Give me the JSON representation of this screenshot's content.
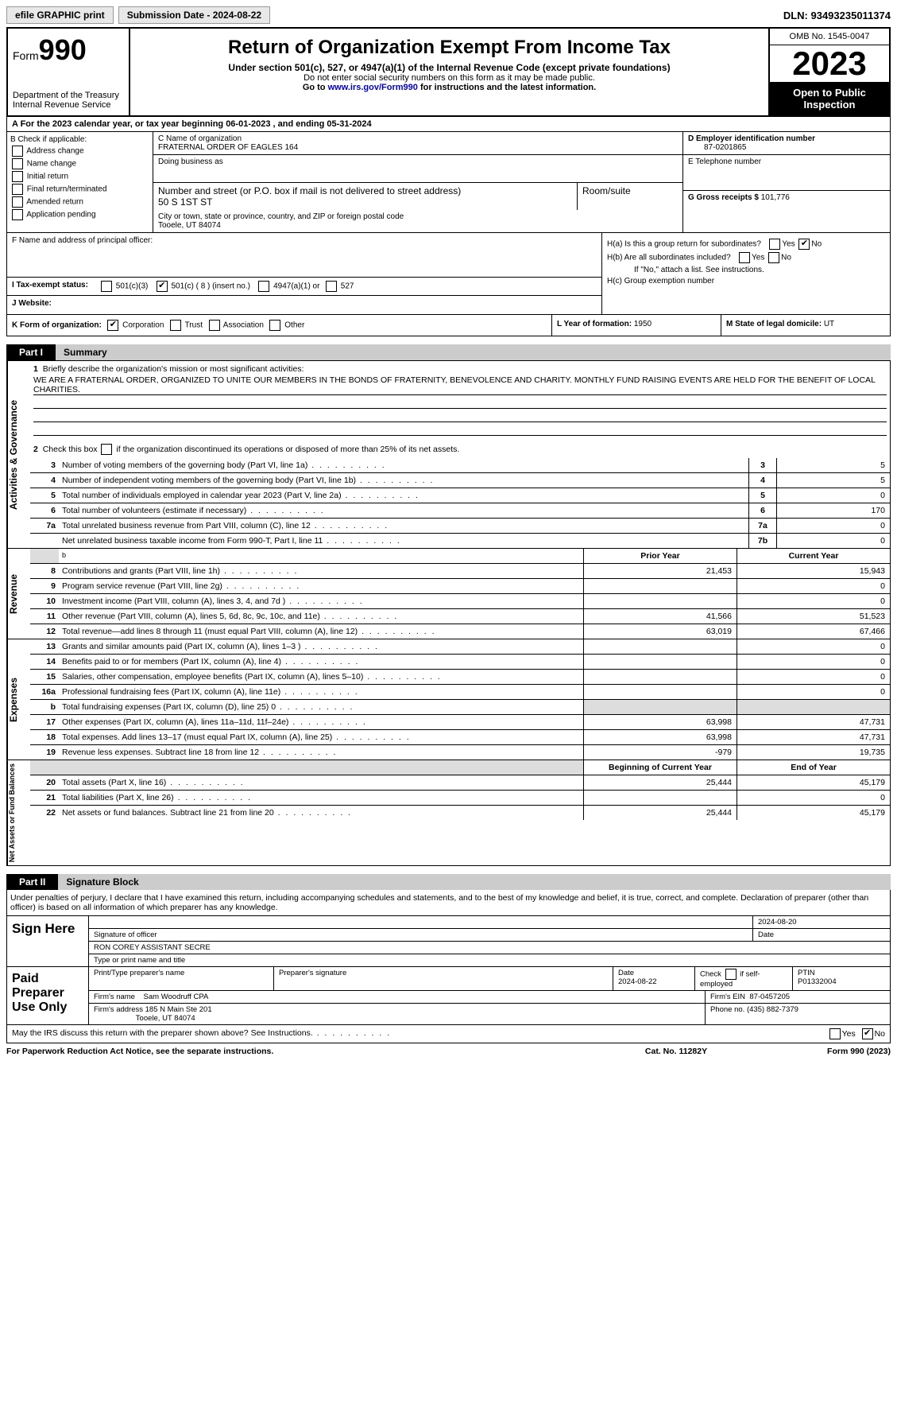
{
  "topbar": {
    "btn1": "efile GRAPHIC print",
    "btn2": "Submission Date - 2024-08-22",
    "dln": "DLN: 93493235011374"
  },
  "header": {
    "form_word": "Form",
    "form_num": "990",
    "dept": "Department of the Treasury\nInternal Revenue Service",
    "title": "Return of Organization Exempt From Income Tax",
    "sub": "Under section 501(c), 527, or 4947(a)(1) of the Internal Revenue Code (except private foundations)",
    "warn": "Do not enter social security numbers on this form as it may be made public.",
    "goto_pre": "Go to ",
    "goto_link": "www.irs.gov/Form990",
    "goto_post": " for instructions and the latest information.",
    "omb": "OMB No. 1545-0047",
    "year": "2023",
    "insp": "Open to Public Inspection"
  },
  "rowA": "A   For the 2023 calendar year, or tax year beginning 06-01-2023    , and ending 05-31-2024",
  "B": {
    "label": "B Check if applicable:",
    "items": [
      "Address change",
      "Name change",
      "Initial return",
      "Final return/terminated",
      "Amended return",
      "Application pending"
    ]
  },
  "C": {
    "name_lbl": "C Name of organization",
    "name": "FRATERNAL ORDER OF EAGLES 164",
    "dba_lbl": "Doing business as",
    "street_lbl": "Number and street (or P.O. box if mail is not delivered to street address)",
    "suite_lbl": "Room/suite",
    "street": "50 S 1ST ST",
    "city_lbl": "City or town, state or province, country, and ZIP or foreign postal code",
    "city": "Tooele, UT  84074"
  },
  "D": {
    "lbl": "D Employer identification number",
    "val": "87-0201865"
  },
  "E": {
    "lbl": "E Telephone number"
  },
  "G": {
    "lbl": "G Gross receipts $",
    "val": "101,776"
  },
  "F": {
    "lbl": "F  Name and address of principal officer:"
  },
  "H": {
    "a": "H(a)  Is this a group return for subordinates?",
    "b": "H(b)  Are all subordinates included?",
    "bnote": "If \"No,\" attach a list. See instructions.",
    "c": "H(c)  Group exemption number"
  },
  "I": {
    "lbl": "I     Tax-exempt status:",
    "o1": "501(c)(3)",
    "o2": "501(c) ( 8 ) (insert no.)",
    "o3": "4947(a)(1) or",
    "o4": "527"
  },
  "J": {
    "lbl": "J    Website:"
  },
  "K": {
    "lbl": "K Form of organization:",
    "o1": "Corporation",
    "o2": "Trust",
    "o3": "Association",
    "o4": "Other"
  },
  "L": {
    "lbl": "L Year of formation:",
    "val": "1950"
  },
  "M": {
    "lbl": "M State of legal domicile:",
    "val": "UT"
  },
  "part1": {
    "lbl": "Part I",
    "ttl": "Summary"
  },
  "tabs": {
    "ag": "Activities & Governance",
    "rev": "Revenue",
    "exp": "Expenses",
    "na": "Net Assets or Fund Balances"
  },
  "q1": {
    "n": "1",
    "t": "Briefly describe the organization's mission or most significant activities:",
    "mission": "WE ARE A FRATERNAL ORDER, ORGANIZED TO UNITE OUR MEMBERS IN THE BONDS OF FRATERNITY, BENEVOLENCE AND CHARITY. MONTHLY FUND RAISING EVENTS ARE HELD FOR THE BENEFIT OF LOCAL CHARITIES."
  },
  "q2": {
    "n": "2",
    "t": "Check this box      if the organization discontinued its operations or disposed of more than 25% of its net assets."
  },
  "ag_rows": [
    {
      "n": "3",
      "t": "Number of voting members of the governing body (Part VI, line 1a)",
      "bn": "3",
      "v": "5"
    },
    {
      "n": "4",
      "t": "Number of independent voting members of the governing body (Part VI, line 1b)",
      "bn": "4",
      "v": "5"
    },
    {
      "n": "5",
      "t": "Total number of individuals employed in calendar year 2023 (Part V, line 2a)",
      "bn": "5",
      "v": "0"
    },
    {
      "n": "6",
      "t": "Total number of volunteers (estimate if necessary)",
      "bn": "6",
      "v": "170"
    },
    {
      "n": "7a",
      "t": "Total unrelated business revenue from Part VIII, column (C), line 12",
      "bn": "7a",
      "v": "0"
    },
    {
      "n": "",
      "t": "Net unrelated business taxable income from Form 990-T, Part I, line 11",
      "bn": "7b",
      "v": "0"
    }
  ],
  "yr_hdr": {
    "py": "Prior Year",
    "cy": "Current Year"
  },
  "rev_rows": [
    {
      "n": "8",
      "t": "Contributions and grants (Part VIII, line 1h)",
      "py": "21,453",
      "cy": "15,943"
    },
    {
      "n": "9",
      "t": "Program service revenue (Part VIII, line 2g)",
      "py": "",
      "cy": "0"
    },
    {
      "n": "10",
      "t": "Investment income (Part VIII, column (A), lines 3, 4, and 7d )",
      "py": "",
      "cy": "0"
    },
    {
      "n": "11",
      "t": "Other revenue (Part VIII, column (A), lines 5, 6d, 8c, 9c, 10c, and 11e)",
      "py": "41,566",
      "cy": "51,523"
    },
    {
      "n": "12",
      "t": "Total revenue—add lines 8 through 11 (must equal Part VIII, column (A), line 12)",
      "py": "63,019",
      "cy": "67,466"
    }
  ],
  "exp_rows": [
    {
      "n": "13",
      "t": "Grants and similar amounts paid (Part IX, column (A), lines 1–3 )",
      "py": "",
      "cy": "0"
    },
    {
      "n": "14",
      "t": "Benefits paid to or for members (Part IX, column (A), line 4)",
      "py": "",
      "cy": "0"
    },
    {
      "n": "15",
      "t": "Salaries, other compensation, employee benefits (Part IX, column (A), lines 5–10)",
      "py": "",
      "cy": "0"
    },
    {
      "n": "16a",
      "t": "Professional fundraising fees (Part IX, column (A), line 11e)",
      "py": "",
      "cy": "0"
    },
    {
      "n": "b",
      "t": "Total fundraising expenses (Part IX, column (D), line 25) 0",
      "py": "SHADE",
      "cy": "SHADE"
    },
    {
      "n": "17",
      "t": "Other expenses (Part IX, column (A), lines 11a–11d, 11f–24e)",
      "py": "63,998",
      "cy": "47,731"
    },
    {
      "n": "18",
      "t": "Total expenses. Add lines 13–17 (must equal Part IX, column (A), line 25)",
      "py": "63,998",
      "cy": "47,731"
    },
    {
      "n": "19",
      "t": "Revenue less expenses. Subtract line 18 from line 12",
      "py": "-979",
      "cy": "19,735"
    }
  ],
  "na_hdr": {
    "py": "Beginning of Current Year",
    "cy": "End of Year"
  },
  "na_rows": [
    {
      "n": "20",
      "t": "Total assets (Part X, line 16)",
      "py": "25,444",
      "cy": "45,179"
    },
    {
      "n": "21",
      "t": "Total liabilities (Part X, line 26)",
      "py": "",
      "cy": "0"
    },
    {
      "n": "22",
      "t": "Net assets or fund balances. Subtract line 21 from line 20",
      "py": "25,444",
      "cy": "45,179"
    }
  ],
  "part2": {
    "lbl": "Part II",
    "ttl": "Signature Block"
  },
  "sig_intro": "Under penalties of perjury, I declare that I have examined this return, including accompanying schedules and statements, and to the best of my knowledge and belief, it is true, correct, and complete. Declaration of preparer (other than officer) is based on all information of which preparer has any knowledge.",
  "sign": {
    "lbl": "Sign Here",
    "sig_lbl": "Signature of officer",
    "date_lbl": "Date",
    "date": "2024-08-20",
    "name": "RON COREY  ASSISTANT SECRE",
    "name_lbl": "Type or print name and title"
  },
  "paid": {
    "lbl": "Paid Preparer Use Only",
    "c1": "Print/Type preparer's name",
    "c2": "Preparer's signature",
    "c3": "Date",
    "c3v": "2024-08-22",
    "c4": "Check        if self-employed",
    "c5": "PTIN",
    "c5v": "P01332004",
    "firm_lbl": "Firm's name",
    "firm": "Sam Woodruff CPA",
    "ein_lbl": "Firm's EIN",
    "ein": "87-0457205",
    "addr_lbl": "Firm's address",
    "addr1": "185 N Main Ste 201",
    "addr2": "Tooele, UT  84074",
    "phone_lbl": "Phone no.",
    "phone": "(435) 882-7379"
  },
  "discuss": "May the IRS discuss this return with the preparer shown above? See Instructions.",
  "foot": {
    "l": "For Paperwork Reduction Act Notice, see the separate instructions.",
    "c": "Cat. No. 11282Y",
    "r": "Form 990 (2023)"
  }
}
